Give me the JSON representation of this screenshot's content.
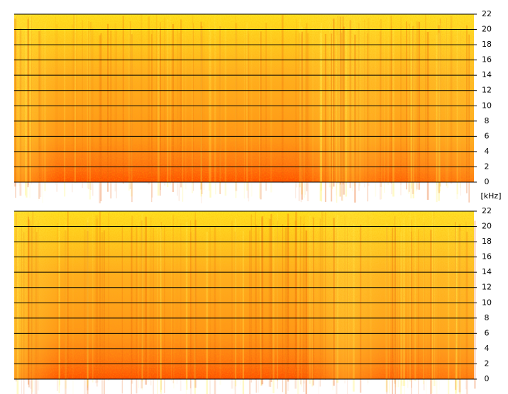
{
  "chart_data": [
    {
      "type": "spectrogram",
      "ylim": [
        0,
        22
      ],
      "yticks": [
        0,
        2,
        4,
        6,
        8,
        10,
        12,
        14,
        16,
        18,
        20,
        22
      ],
      "grid": true,
      "ylabel": "[kHz]"
    },
    {
      "type": "spectrogram",
      "ylim": [
        0,
        22
      ],
      "yticks": [
        0,
        2,
        4,
        6,
        8,
        10,
        12,
        14,
        16,
        18,
        20,
        22
      ],
      "grid": true
    }
  ]
}
